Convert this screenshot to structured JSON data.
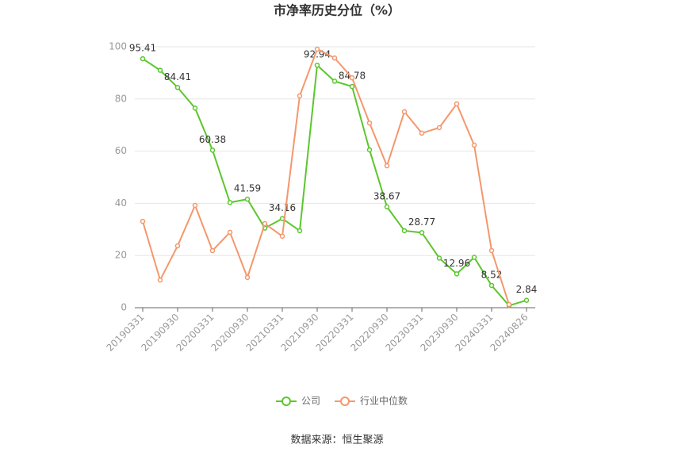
{
  "chart_data": {
    "type": "line",
    "title": "市净率历史分位（%）",
    "categories": [
      "20190331",
      null,
      "20190930",
      null,
      "20200331",
      null,
      "20200930",
      null,
      "20210331",
      null,
      "20210930",
      null,
      "20220331",
      null,
      "20220930",
      null,
      "20230331",
      null,
      "20230930",
      null,
      "20240331",
      null,
      "20240826"
    ],
    "series": [
      {
        "name": "公司",
        "color": "#5cc62e",
        "values": [
          95.41,
          91,
          84.41,
          76.5,
          60.38,
          40.3,
          41.59,
          30.5,
          34.16,
          29.5,
          92.94,
          86.8,
          84.78,
          60.5,
          38.67,
          29.5,
          28.77,
          19,
          12.96,
          19.3,
          8.52,
          0.8,
          2.84
        ],
        "value_labels": [
          "95.41",
          null,
          "84.41",
          null,
          "60.38",
          null,
          "41.59",
          null,
          "34.16",
          null,
          "92.94",
          null,
          "84.78",
          null,
          "38.67",
          null,
          "28.77",
          null,
          "12.96",
          null,
          "8.52",
          null,
          "2.84"
        ]
      },
      {
        "name": "行业中位数",
        "color": "#f4976c",
        "values": [
          33.1,
          10.6,
          23.7,
          39.2,
          21.9,
          28.9,
          11.6,
          32.2,
          27.4,
          81.2,
          99.1,
          95.7,
          88.1,
          70.8,
          54.4,
          75.1,
          66.9,
          69.0,
          78.1,
          62.3,
          21.9,
          1.2,
          null
        ]
      }
    ],
    "ylim": [
      0,
      100
    ],
    "yticks": [
      0,
      20,
      40,
      60,
      80,
      100
    ],
    "grid": true,
    "legend": "bottom",
    "source": "数据来源：恒生聚源"
  }
}
